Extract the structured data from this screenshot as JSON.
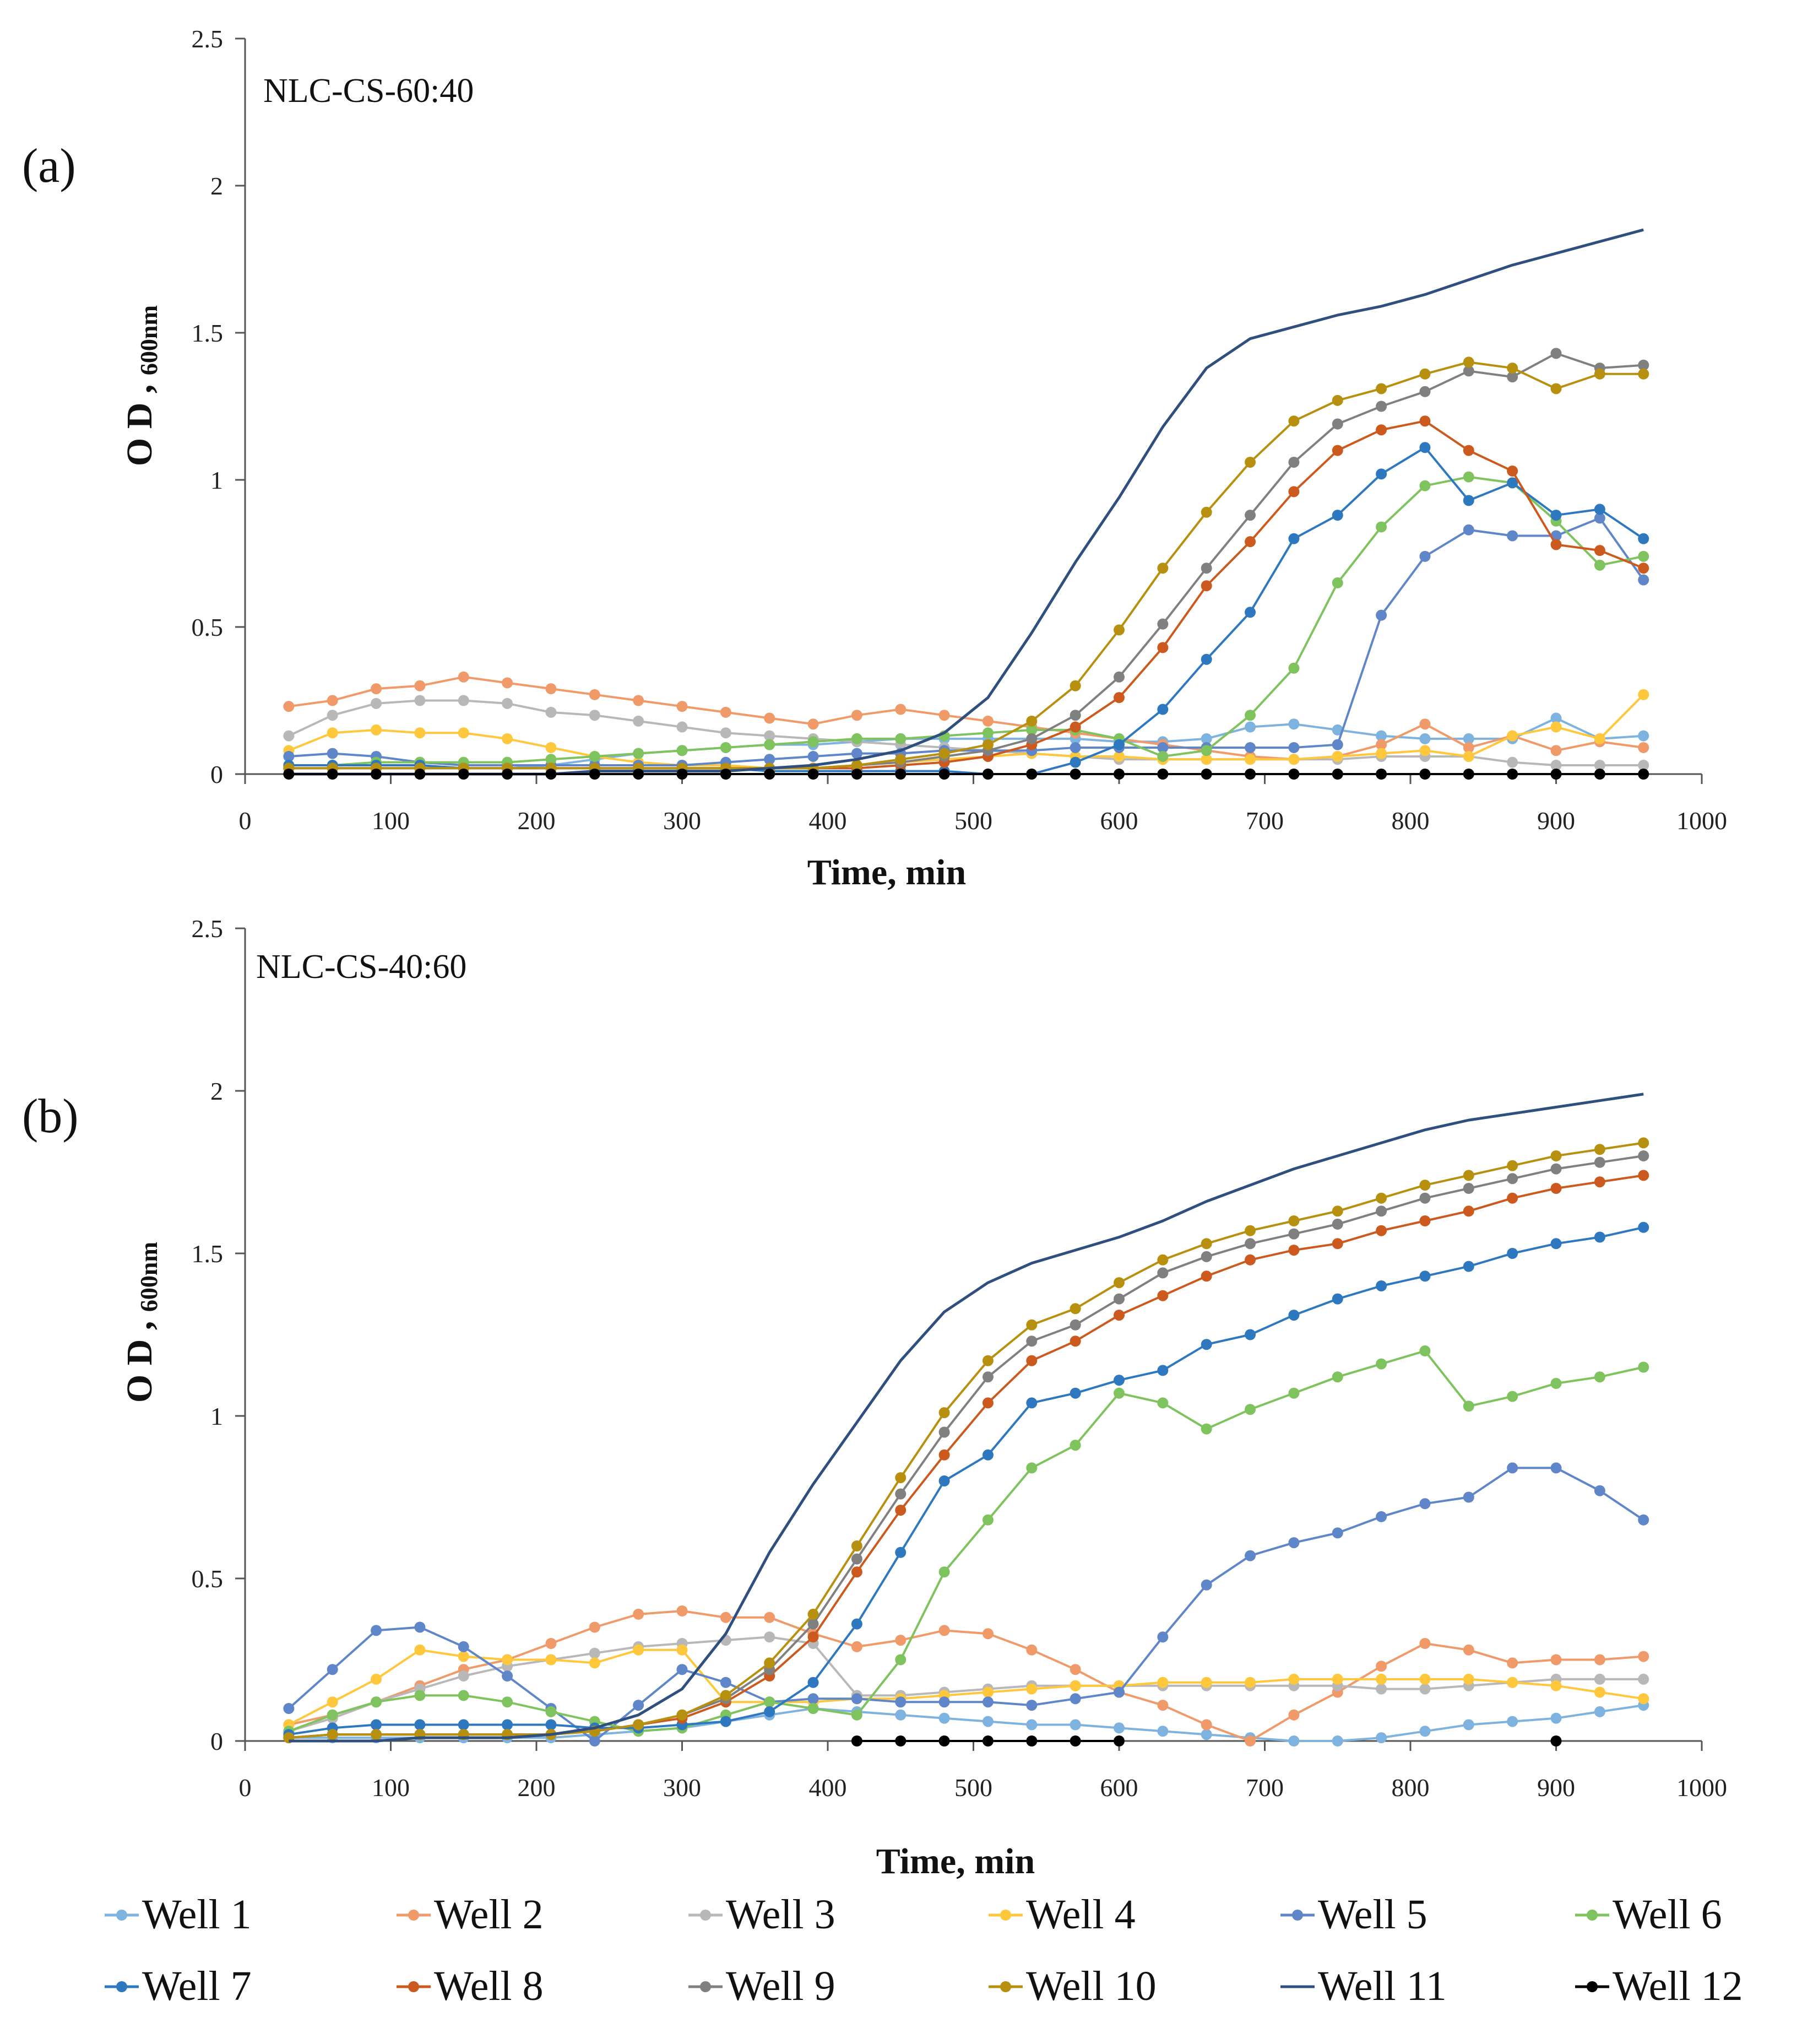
{
  "colors": {
    "Well 1": "#7EB3DF",
    "Well 2": "#F09A6A",
    "Well 3": "#B8B8B8",
    "Well 4": "#FFC83C",
    "Well 5": "#5F86C8",
    "Well 6": "#7FC35E",
    "Well 7": "#2E78C0",
    "Well 8": "#CC5A1E",
    "Well 9": "#808080",
    "Well 10": "#B8900F",
    "Well 11": "#2F4F7F",
    "Well 12": "#000000"
  },
  "legend": [
    "Well 1",
    "Well 2",
    "Well 3",
    "Well 4",
    "Well 5",
    "Well 6",
    "Well 7",
    "Well 8",
    "Well 9",
    "Well 10",
    "Well 11",
    "Well 12"
  ],
  "chart_data": [
    {
      "type": "line",
      "panel_label": "(a)",
      "title": "NLC-CS-60:40",
      "xlabel": "Time, min",
      "ylabel_main": "O D , ",
      "ylabel_sub": "600nm",
      "xlim": [
        0,
        1000
      ],
      "ylim": [
        0,
        2.5
      ],
      "xticks": [
        "0",
        "100",
        "200",
        "300",
        "400",
        "500",
        "600",
        "700",
        "800",
        "900",
        "1000"
      ],
      "yticks": [
        "0",
        "0.5",
        "1",
        "1.5",
        "2",
        "2.5"
      ],
      "x": [
        30,
        60,
        90,
        120,
        150,
        180,
        210,
        240,
        270,
        300,
        330,
        360,
        390,
        420,
        450,
        480,
        510,
        540,
        570,
        600,
        630,
        660,
        690,
        720,
        750,
        780,
        810,
        840,
        870,
        900,
        930,
        960
      ],
      "series": [
        {
          "name": "Well 1",
          "values": [
            0.02,
            0.02,
            0.02,
            0.02,
            0.02,
            0.02,
            0.03,
            0.05,
            0.07,
            0.08,
            0.09,
            0.1,
            0.1,
            0.11,
            0.12,
            0.12,
            0.12,
            0.12,
            0.12,
            0.11,
            0.11,
            0.12,
            0.16,
            0.17,
            0.15,
            0.13,
            0.12,
            0.12,
            0.12,
            0.19,
            0.12,
            0.13
          ]
        },
        {
          "name": "Well 2",
          "values": [
            0.23,
            0.25,
            0.29,
            0.3,
            0.33,
            0.31,
            0.29,
            0.27,
            0.25,
            0.23,
            0.21,
            0.19,
            0.17,
            0.2,
            0.22,
            0.2,
            0.18,
            0.16,
            0.14,
            0.12,
            0.1,
            0.08,
            0.06,
            0.05,
            0.06,
            0.1,
            0.17,
            0.09,
            0.13,
            0.08,
            0.11,
            0.09
          ]
        },
        {
          "name": "Well 3",
          "values": [
            0.13,
            0.2,
            0.24,
            0.25,
            0.25,
            0.24,
            0.21,
            0.2,
            0.18,
            0.16,
            0.14,
            0.13,
            0.12,
            0.11,
            0.1,
            0.09,
            0.08,
            0.07,
            0.06,
            0.05,
            0.05,
            0.05,
            0.05,
            0.05,
            0.05,
            0.06,
            0.06,
            0.06,
            0.04,
            0.03,
            0.03,
            0.03
          ]
        },
        {
          "name": "Well 4",
          "values": [
            0.08,
            0.14,
            0.15,
            0.14,
            0.14,
            0.12,
            0.09,
            0.06,
            0.04,
            0.03,
            0.03,
            0.02,
            0.02,
            0.03,
            0.04,
            0.05,
            0.06,
            0.07,
            0.06,
            0.06,
            0.05,
            0.05,
            0.05,
            0.05,
            0.06,
            0.07,
            0.08,
            0.06,
            0.13,
            0.16,
            0.12,
            0.27
          ]
        },
        {
          "name": "Well 5",
          "values": [
            0.06,
            0.07,
            0.06,
            0.04,
            0.03,
            0.03,
            0.03,
            0.03,
            0.03,
            0.03,
            0.04,
            0.05,
            0.06,
            0.07,
            0.07,
            0.08,
            0.08,
            0.08,
            0.09,
            0.09,
            0.09,
            0.09,
            0.09,
            0.09,
            0.1,
            0.54,
            0.74,
            0.83,
            0.81,
            0.81,
            0.87,
            0.66
          ]
        },
        {
          "name": "Well 6",
          "values": [
            0.03,
            0.03,
            0.04,
            0.04,
            0.04,
            0.04,
            0.05,
            0.06,
            0.07,
            0.08,
            0.09,
            0.1,
            0.11,
            0.12,
            0.12,
            0.13,
            0.14,
            0.15,
            0.15,
            0.12,
            0.06,
            0.08,
            0.2,
            0.36,
            0.65,
            0.84,
            0.98,
            1.01,
            0.99,
            0.86,
            0.71,
            0.74
          ]
        },
        {
          "name": "Well 7",
          "values": [
            0.03,
            0.03,
            0.03,
            0.03,
            0.02,
            0.02,
            0.02,
            0.02,
            0.02,
            0.02,
            0.02,
            0.01,
            0.01,
            0.01,
            0.01,
            0.01,
            0.0,
            0.0,
            0.04,
            0.1,
            0.22,
            0.39,
            0.55,
            0.8,
            0.88,
            1.02,
            1.11,
            0.93,
            0.99,
            0.88,
            0.9,
            0.8
          ]
        },
        {
          "name": "Well 8",
          "values": [
            0.02,
            0.02,
            0.02,
            0.02,
            0.02,
            0.02,
            0.02,
            0.02,
            0.02,
            0.02,
            0.02,
            0.02,
            0.02,
            0.02,
            0.03,
            0.04,
            0.06,
            0.1,
            0.16,
            0.26,
            0.43,
            0.64,
            0.79,
            0.96,
            1.1,
            1.17,
            1.2,
            1.1,
            1.03,
            0.78,
            0.76,
            0.7
          ]
        },
        {
          "name": "Well 9",
          "values": [
            0.02,
            0.02,
            0.02,
            0.02,
            0.02,
            0.02,
            0.02,
            0.02,
            0.02,
            0.02,
            0.02,
            0.02,
            0.02,
            0.03,
            0.04,
            0.06,
            0.08,
            0.12,
            0.2,
            0.33,
            0.51,
            0.7,
            0.88,
            1.06,
            1.19,
            1.25,
            1.3,
            1.37,
            1.35,
            1.43,
            1.38,
            1.39
          ]
        },
        {
          "name": "Well 10",
          "values": [
            0.02,
            0.02,
            0.02,
            0.02,
            0.02,
            0.02,
            0.02,
            0.02,
            0.02,
            0.02,
            0.02,
            0.02,
            0.02,
            0.03,
            0.05,
            0.07,
            0.1,
            0.18,
            0.3,
            0.49,
            0.7,
            0.89,
            1.06,
            1.2,
            1.27,
            1.31,
            1.36,
            1.4,
            1.38,
            1.31,
            1.36,
            1.36
          ]
        },
        {
          "name": "Well 11",
          "values": [
            0.0,
            0.0,
            0.0,
            0.0,
            0.0,
            0.0,
            0.0,
            0.01,
            0.01,
            0.01,
            0.01,
            0.02,
            0.03,
            0.05,
            0.08,
            0.14,
            0.26,
            0.48,
            0.72,
            0.94,
            1.18,
            1.38,
            1.48,
            1.52,
            1.56,
            1.59,
            1.63,
            1.68,
            1.73,
            1.77,
            1.81,
            1.85
          ]
        },
        {
          "name": "Well 12",
          "values": [
            0,
            0,
            0,
            0,
            0,
            0,
            0,
            0,
            0,
            0,
            0,
            0,
            0,
            0,
            0,
            0,
            0,
            0,
            0,
            0,
            0,
            0,
            0,
            0,
            0,
            0,
            0,
            0,
            0,
            0,
            0,
            0
          ]
        }
      ]
    },
    {
      "type": "line",
      "panel_label": "(b)",
      "title": "NLC-CS-40:60",
      "xlabel": "Time, min",
      "ylabel_main": "O D , ",
      "ylabel_sub": "600nm",
      "xlim": [
        0,
        1000
      ],
      "ylim": [
        0,
        2.5
      ],
      "xticks": [
        "0",
        "100",
        "200",
        "300",
        "400",
        "500",
        "600",
        "700",
        "800",
        "900",
        "1000"
      ],
      "yticks": [
        "0",
        "0.5",
        "1",
        "1.5",
        "2",
        "2.5"
      ],
      "x": [
        30,
        60,
        90,
        120,
        150,
        180,
        210,
        240,
        270,
        300,
        330,
        360,
        390,
        420,
        450,
        480,
        510,
        540,
        570,
        600,
        630,
        660,
        690,
        720,
        750,
        780,
        810,
        840,
        870,
        900,
        930,
        960
      ],
      "series": [
        {
          "name": "Well 1",
          "values": [
            0.01,
            0.01,
            0.01,
            0.01,
            0.01,
            0.01,
            0.01,
            0.02,
            0.03,
            0.04,
            0.06,
            0.08,
            0.1,
            0.09,
            0.08,
            0.07,
            0.06,
            0.05,
            0.05,
            0.04,
            0.03,
            0.02,
            0.01,
            0.0,
            0.0,
            0.01,
            0.03,
            0.05,
            0.06,
            0.07,
            0.09,
            0.11
          ]
        },
        {
          "name": "Well 2",
          "values": [
            0.05,
            0.08,
            0.12,
            0.17,
            0.22,
            0.25,
            0.3,
            0.35,
            0.39,
            0.4,
            0.38,
            0.38,
            0.33,
            0.29,
            0.31,
            0.34,
            0.33,
            0.28,
            0.22,
            0.15,
            0.11,
            0.05,
            0.0,
            0.08,
            0.15,
            0.23,
            0.3,
            0.28,
            0.24,
            0.25,
            0.25,
            0.26
          ]
        },
        {
          "name": "Well 3",
          "values": [
            0.03,
            0.07,
            0.12,
            0.16,
            0.2,
            0.23,
            0.25,
            0.27,
            0.29,
            0.3,
            0.31,
            0.32,
            0.3,
            0.14,
            0.14,
            0.15,
            0.16,
            0.17,
            0.17,
            0.17,
            0.17,
            0.17,
            0.17,
            0.17,
            0.17,
            0.16,
            0.16,
            0.17,
            0.18,
            0.19,
            0.19,
            0.19
          ]
        },
        {
          "name": "Well 4",
          "values": [
            0.05,
            0.12,
            0.19,
            0.28,
            0.26,
            0.25,
            0.25,
            0.24,
            0.28,
            0.28,
            0.12,
            0.12,
            0.12,
            0.13,
            0.13,
            0.14,
            0.15,
            0.16,
            0.17,
            0.17,
            0.18,
            0.18,
            0.18,
            0.19,
            0.19,
            0.19,
            0.19,
            0.19,
            0.18,
            0.17,
            0.15,
            0.13
          ]
        },
        {
          "name": "Well 5",
          "values": [
            0.1,
            0.22,
            0.34,
            0.35,
            0.29,
            0.2,
            0.1,
            0.0,
            0.11,
            0.22,
            0.18,
            0.12,
            0.13,
            0.13,
            0.12,
            0.12,
            0.12,
            0.11,
            0.13,
            0.15,
            0.32,
            0.48,
            0.57,
            0.61,
            0.64,
            0.69,
            0.73,
            0.75,
            0.84,
            0.84,
            0.77,
            0.68
          ]
        },
        {
          "name": "Well 6",
          "values": [
            0.03,
            0.08,
            0.12,
            0.14,
            0.14,
            0.12,
            0.09,
            0.06,
            0.03,
            0.04,
            0.08,
            0.12,
            0.1,
            0.08,
            0.25,
            0.52,
            0.68,
            0.84,
            0.91,
            1.07,
            1.04,
            0.96,
            1.02,
            1.07,
            1.12,
            1.16,
            1.2,
            1.03,
            1.06,
            1.1,
            1.12,
            1.15
          ]
        },
        {
          "name": "Well 7",
          "values": [
            0.02,
            0.04,
            0.05,
            0.05,
            0.05,
            0.05,
            0.05,
            0.04,
            0.04,
            0.05,
            0.06,
            0.09,
            0.18,
            0.36,
            0.58,
            0.8,
            0.88,
            1.04,
            1.07,
            1.11,
            1.14,
            1.22,
            1.25,
            1.31,
            1.36,
            1.4,
            1.43,
            1.46,
            1.5,
            1.53,
            1.55,
            1.58
          ]
        },
        {
          "name": "Well 8",
          "values": [
            0.01,
            0.02,
            0.02,
            0.02,
            0.02,
            0.02,
            0.02,
            0.03,
            0.05,
            0.07,
            0.12,
            0.2,
            0.32,
            0.52,
            0.71,
            0.88,
            1.04,
            1.17,
            1.23,
            1.31,
            1.37,
            1.43,
            1.48,
            1.51,
            1.53,
            1.57,
            1.6,
            1.63,
            1.67,
            1.7,
            1.72,
            1.74
          ]
        },
        {
          "name": "Well 9",
          "values": [
            0.01,
            0.02,
            0.02,
            0.02,
            0.02,
            0.02,
            0.02,
            0.03,
            0.05,
            0.08,
            0.13,
            0.22,
            0.36,
            0.56,
            0.76,
            0.95,
            1.12,
            1.23,
            1.28,
            1.36,
            1.44,
            1.49,
            1.53,
            1.56,
            1.59,
            1.63,
            1.67,
            1.7,
            1.73,
            1.76,
            1.78,
            1.8
          ]
        },
        {
          "name": "Well 10",
          "values": [
            0.01,
            0.02,
            0.02,
            0.02,
            0.02,
            0.02,
            0.02,
            0.03,
            0.05,
            0.08,
            0.14,
            0.24,
            0.39,
            0.6,
            0.81,
            1.01,
            1.17,
            1.28,
            1.33,
            1.41,
            1.48,
            1.53,
            1.57,
            1.6,
            1.63,
            1.67,
            1.71,
            1.74,
            1.77,
            1.8,
            1.82,
            1.84
          ]
        },
        {
          "name": "Well 11",
          "values": [
            0.0,
            0.0,
            0.0,
            0.01,
            0.01,
            0.01,
            0.02,
            0.04,
            0.08,
            0.16,
            0.33,
            0.58,
            0.79,
            0.98,
            1.17,
            1.32,
            1.41,
            1.47,
            1.51,
            1.55,
            1.6,
            1.66,
            1.71,
            1.76,
            1.8,
            1.84,
            1.88,
            1.91,
            1.93,
            1.95,
            1.97,
            1.99
          ]
        },
        {
          "name": "Well 12",
          "values": [
            null,
            null,
            null,
            null,
            null,
            null,
            null,
            null,
            null,
            null,
            null,
            null,
            null,
            0,
            0,
            0,
            0,
            0,
            0,
            0,
            null,
            null,
            null,
            null,
            null,
            null,
            null,
            null,
            null,
            0,
            null,
            null
          ]
        }
      ]
    }
  ]
}
